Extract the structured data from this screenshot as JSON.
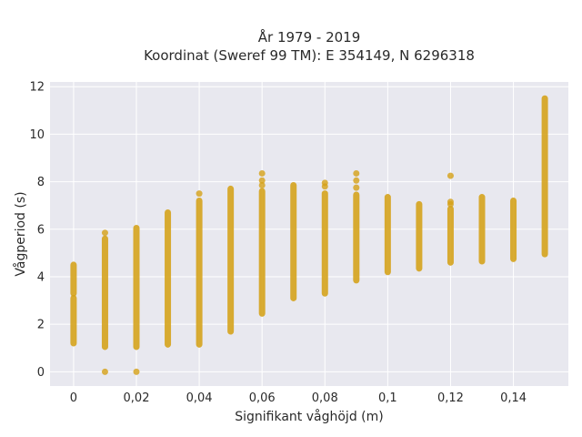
{
  "chart_data": {
    "type": "scatter",
    "title_line1": "År 1979 - 2019",
    "title_line2": "Koordinat (Sweref 99 TM): E 354149, N 6296318",
    "xlabel": "Signifikant våghöjd (m)",
    "ylabel": "Vågperiod (s)",
    "xlim": [
      -0.0075,
      0.1575
    ],
    "ylim": [
      -0.6,
      12.2
    ],
    "xticks": [
      0,
      0.02,
      0.04,
      0.06,
      0.08,
      0.1,
      0.12,
      0.14
    ],
    "xtick_labels": [
      "0",
      "0,02",
      "0,04",
      "0,06",
      "0,08",
      "0,1",
      "0,12",
      "0,14"
    ],
    "yticks": [
      0,
      2,
      4,
      6,
      8,
      10,
      12
    ],
    "ytick_labels": [
      "0",
      "2",
      "4",
      "6",
      "8",
      "10",
      "12"
    ],
    "grid": true,
    "marker_color": "#d4a017",
    "background_color": "#e8e8ef",
    "columns": [
      {
        "x": 0.0,
        "bands": [
          [
            1.2,
            3.1
          ],
          [
            3.3,
            4.5
          ]
        ],
        "outliers": []
      },
      {
        "x": 0.01,
        "bands": [
          [
            1.05,
            5.6
          ]
        ],
        "outliers": [
          0.0,
          5.85
        ]
      },
      {
        "x": 0.02,
        "bands": [
          [
            1.05,
            6.05
          ]
        ],
        "outliers": [
          0.0
        ]
      },
      {
        "x": 0.03,
        "bands": [
          [
            1.15,
            6.7
          ]
        ],
        "outliers": []
      },
      {
        "x": 0.04,
        "bands": [
          [
            1.15,
            7.2
          ]
        ],
        "outliers": [
          7.5
        ]
      },
      {
        "x": 0.05,
        "bands": [
          [
            1.7,
            7.7
          ]
        ],
        "outliers": []
      },
      {
        "x": 0.06,
        "bands": [
          [
            2.45,
            7.6
          ]
        ],
        "outliers": [
          7.85,
          8.05,
          8.35
        ]
      },
      {
        "x": 0.07,
        "bands": [
          [
            3.1,
            7.85
          ]
        ],
        "outliers": []
      },
      {
        "x": 0.08,
        "bands": [
          [
            3.3,
            7.5
          ]
        ],
        "outliers": [
          7.8,
          7.95
        ]
      },
      {
        "x": 0.09,
        "bands": [
          [
            3.85,
            7.45
          ]
        ],
        "outliers": [
          7.75,
          8.05,
          8.35
        ]
      },
      {
        "x": 0.1,
        "bands": [
          [
            4.2,
            7.35
          ]
        ],
        "outliers": []
      },
      {
        "x": 0.11,
        "bands": [
          [
            4.35,
            7.05
          ]
        ],
        "outliers": []
      },
      {
        "x": 0.12,
        "bands": [
          [
            4.6,
            6.85
          ]
        ],
        "outliers": [
          7.05,
          7.15,
          8.25
        ]
      },
      {
        "x": 0.13,
        "bands": [
          [
            4.65,
            7.35
          ]
        ],
        "outliers": []
      },
      {
        "x": 0.14,
        "bands": [
          [
            4.75,
            7.2
          ]
        ],
        "outliers": []
      },
      {
        "x": 0.15,
        "bands": [
          [
            4.95,
            11.5
          ]
        ],
        "outliers": []
      }
    ]
  }
}
